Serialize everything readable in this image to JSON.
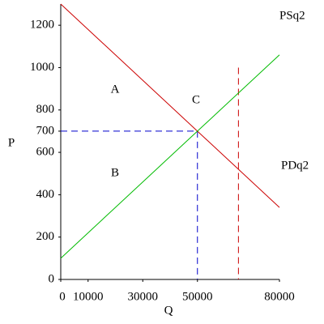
{
  "chart_data": {
    "type": "line",
    "xlabel": "Q",
    "ylabel": "P",
    "xlim": [
      0,
      80000
    ],
    "ylim": [
      0,
      1300
    ],
    "xticks": [
      0,
      10000,
      30000,
      50000,
      80000
    ],
    "yticks": [
      0,
      200,
      400,
      600,
      700,
      800,
      1000,
      1200
    ],
    "series": [
      {
        "name": "PDq2",
        "color": "#cc0000",
        "x": [
          0,
          80000
        ],
        "values": [
          1300,
          340
        ]
      },
      {
        "name": "PSq2",
        "color": "#00bb00",
        "x": [
          0,
          80000
        ],
        "values": [
          100,
          1060
        ]
      }
    ],
    "guides": [
      {
        "color": "#0000cc",
        "x": [
          0,
          50000
        ],
        "values": [
          700,
          700
        ]
      },
      {
        "color": "#0000cc",
        "x": [
          50000,
          50000
        ],
        "values": [
          700,
          0
        ]
      },
      {
        "color": "#cc0000",
        "x": [
          65000,
          65000
        ],
        "values": [
          1000,
          0
        ]
      }
    ],
    "annotations": [
      "A",
      "B",
      "C"
    ]
  }
}
